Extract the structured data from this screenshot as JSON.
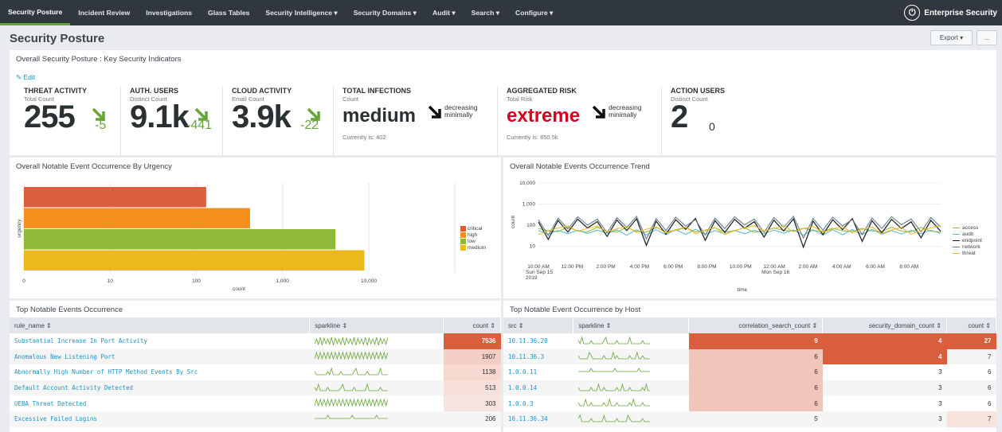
{
  "nav": {
    "items": [
      {
        "label": "Security Posture",
        "active": true
      },
      {
        "label": "Incident Review"
      },
      {
        "label": "Investigations"
      },
      {
        "label": "Glass Tables"
      },
      {
        "label": "Security Intelligence ▾"
      },
      {
        "label": "Security Domains ▾"
      },
      {
        "label": "Audit ▾"
      },
      {
        "label": "Search ▾"
      },
      {
        "label": "Configure ▾"
      }
    ],
    "brand": "Enterprise Security",
    "brand_icon": "splunk-logo-icon"
  },
  "page": {
    "title": "Security Posture",
    "export_label": "Export ▾",
    "more_label": "..."
  },
  "kpi_panel": {
    "title": "Overall Security Posture : Key Security Indicators",
    "edit_label": "Edit",
    "kpis": [
      {
        "title": "THREAT ACTIVITY",
        "sub": "Total Count",
        "value": "255",
        "delta": "-5",
        "trend": "down-green"
      },
      {
        "title": "AUTH. USERS",
        "sub": "Distinct Count",
        "value": "9.1k",
        "delta": "-441",
        "trend": "down-green"
      },
      {
        "title": "CLOUD ACTIVITY",
        "sub": "Email Count",
        "value": "3.9k",
        "delta": "-22",
        "trend": "down-green"
      },
      {
        "title": "TOTAL INFECTIONS",
        "sub": "Count",
        "value": "medium",
        "trend_text": "decreasing minimally",
        "foot": "Currently is: 402",
        "color": "#2b3033"
      },
      {
        "title": "AGGREGATED RISK",
        "sub": "Total Risk",
        "value": "extreme",
        "trend_text": "decreasing minimally",
        "foot": "Currently is: 850.5k",
        "color": "#d6001c"
      },
      {
        "title": "ACTION USERS",
        "sub": "Distinct Count",
        "value": "2",
        "delta": "0"
      }
    ]
  },
  "urgency_panel": {
    "title": "Overall Notable Event Occurrence By Urgency",
    "chart_data": {
      "type": "bar",
      "orientation": "horizontal",
      "log_scale": true,
      "categories": [
        "critical",
        "high",
        "low",
        "medium"
      ],
      "values": [
        130,
        420,
        4100,
        8900
      ],
      "colors": [
        "#d85e3d",
        "#f58f1e",
        "#8fba38",
        "#ecb91a"
      ],
      "xlabel": "count",
      "ylabel": "urgency",
      "xticks": [
        "0",
        "10",
        "100",
        "1,000",
        "10,000"
      ],
      "legend": [
        "critical",
        "high",
        "low",
        "medium"
      ],
      "legend_placement": "right"
    }
  },
  "trend_panel": {
    "title": "Overall Notable Events Occurrence Trend",
    "chart_data": {
      "type": "line",
      "log_scale": true,
      "ylabel": "count",
      "xlabel": "time",
      "yticks": [
        "10,000",
        "1,000",
        "100",
        "10"
      ],
      "xticks": [
        "10:00 AM\nSun Sep 15\n2019",
        "12:00 PM",
        "2:00 PM",
        "4:00 PM",
        "6:00 PM",
        "8:00 PM",
        "10:00 PM",
        "12:00 AM\nMon Sep 16",
        "2:00 AM",
        "4:00 AM",
        "6:00 AM",
        "8:00 AM"
      ],
      "legend_placement": "right",
      "series": [
        {
          "name": "access",
          "color": "#8fba38"
        },
        {
          "name": "audit",
          "color": "#5fb5c9"
        },
        {
          "name": "endpoint",
          "color": "#1a1c20"
        },
        {
          "name": "network",
          "color": "#607889"
        },
        {
          "name": "threat",
          "color": "#ecb91a"
        }
      ]
    }
  },
  "top_events": {
    "title": "Top Notable Events Occurrence",
    "columns": [
      "rule_name ⇕",
      "sparkline ⇕",
      "count ⇕"
    ],
    "rows": [
      {
        "rule": "Substantial Increase In Port Activity",
        "count": "7536",
        "heat": 1.0
      },
      {
        "rule": "Anomalous New Listening Port",
        "count": "1907",
        "heat": 0.22
      },
      {
        "rule": "Abnormally High Number of HTTP Method Events By Src",
        "count": "1138",
        "heat": 0.13
      },
      {
        "rule": "Default Account Activity Detected",
        "count": "513",
        "heat": 0.06
      },
      {
        "rule": "UEBA Threat Detected",
        "count": "303",
        "heat": 0.03
      },
      {
        "rule": "Excessive Failed Logins",
        "count": "206",
        "heat": 0.0
      }
    ]
  },
  "top_hosts": {
    "title": "Top Notable Event Occurrence by Host",
    "columns": [
      "src ⇕",
      "sparkline ⇕",
      "correlation_search_count ⇕",
      "security_domain_count ⇕",
      "count ⇕"
    ],
    "rows": [
      {
        "src": "10.11.36.20",
        "csc": "9",
        "sdc": "4",
        "count": "27",
        "h1": 1.0,
        "h2": 1.0,
        "h3": 1.0
      },
      {
        "src": "10.11.36.3",
        "csc": "6",
        "sdc": "4",
        "count": "7",
        "h1": 0.3,
        "h2": 1.0,
        "h3": 0.0
      },
      {
        "src": "1.0.0.11",
        "csc": "6",
        "sdc": "3",
        "count": "6",
        "h1": 0.3,
        "h2": 0.0,
        "h3": 0.0
      },
      {
        "src": "1.0.0.14",
        "csc": "6",
        "sdc": "3",
        "count": "6",
        "h1": 0.3,
        "h2": 0.0,
        "h3": 0.0
      },
      {
        "src": "1.0.0.3",
        "csc": "6",
        "sdc": "3",
        "count": "6",
        "h1": 0.3,
        "h2": 0.0,
        "h3": 0.0
      },
      {
        "src": "10.11.36.34",
        "csc": "5",
        "sdc": "3",
        "count": "7",
        "h1": 0.0,
        "h2": 0.0,
        "h3": 0.05
      }
    ]
  }
}
